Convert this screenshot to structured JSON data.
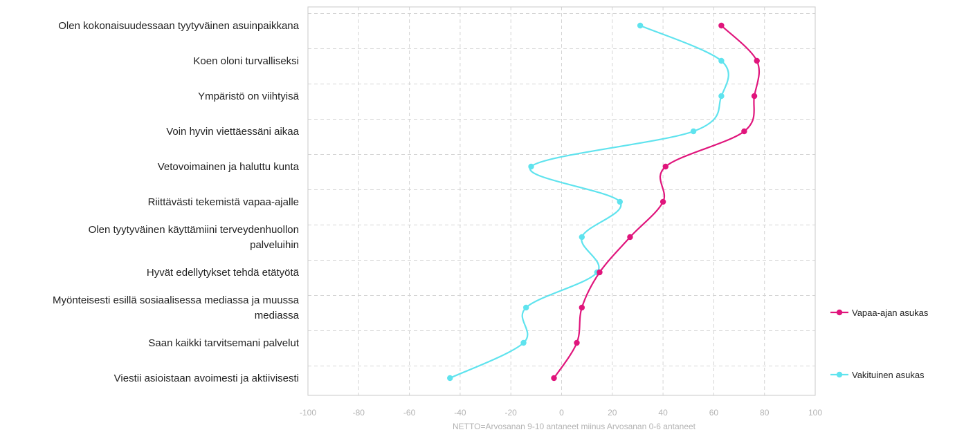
{
  "chart_data": {
    "type": "line",
    "title": "",
    "xlabel": "NETTO=Arvosanan 9-10 antaneet miinus Arvosanan 0-6 antaneet",
    "ylabel": "",
    "xlim": [
      -100,
      100
    ],
    "xticks": [
      -100,
      -80,
      -60,
      -40,
      -20,
      0,
      20,
      40,
      60,
      80,
      100
    ],
    "grid": true,
    "legend_position": "right",
    "categories": [
      [
        "Olen kokonaisuudessaan tyytyväinen asuinpaikkana"
      ],
      [
        "Koen oloni turvalliseksi"
      ],
      [
        "Ympäristö on viihtyisä"
      ],
      [
        "Voin hyvin viettäessäni aikaa"
      ],
      [
        "Vetovoimainen ja haluttu kunta"
      ],
      [
        "Riittävästi tekemistä vapaa-ajalle"
      ],
      [
        "Olen tyytyväinen käyttämiini terveydenhuollon",
        "palveluihin"
      ],
      [
        "Hyvät edellytykset tehdä etätyötä"
      ],
      [
        "Myönteisesti esillä sosiaalisessa mediassa ja muussa",
        "mediassa"
      ],
      [
        "Saan kaikki tarvitsemani palvelut"
      ],
      [
        "Viestii asioistaan avoimesti ja aktiivisesti"
      ]
    ],
    "series": [
      {
        "name": "Vapaa-ajan asukas",
        "color": "#e0157c",
        "values": [
          63,
          77,
          76,
          72,
          41,
          40,
          27,
          15,
          8,
          6,
          -3
        ]
      },
      {
        "name": "Vakituinen asukas",
        "color": "#5fe3ee",
        "values": [
          31,
          63,
          63,
          52,
          -12,
          23,
          8,
          14,
          -14,
          -15,
          -44
        ]
      }
    ]
  }
}
